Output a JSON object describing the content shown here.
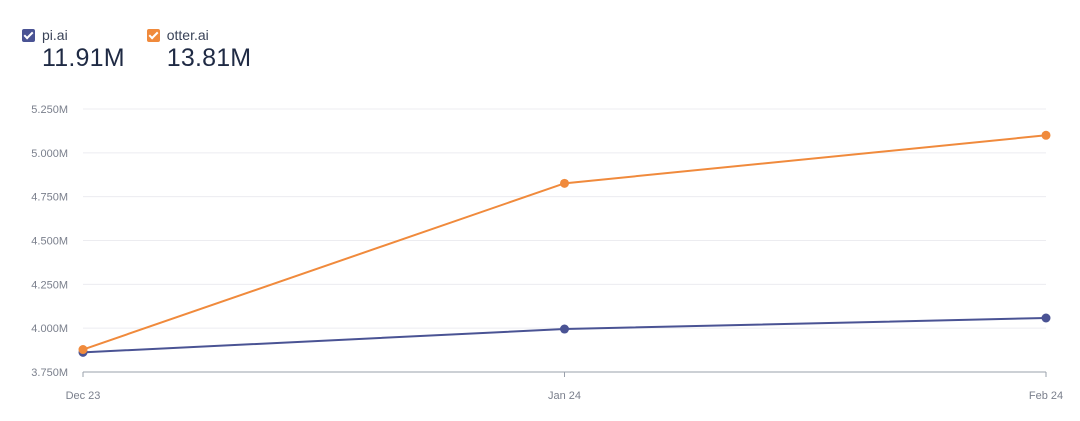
{
  "legend": [
    {
      "name": "pi.ai",
      "total": "11.91M",
      "color": "#4a5394"
    },
    {
      "name": "otter.ai",
      "total": "13.81M",
      "color": "#f08a3c"
    }
  ],
  "chart_data": {
    "type": "line",
    "categories": [
      "Dec 23",
      "Jan 24",
      "Feb 24"
    ],
    "series": [
      {
        "name": "pi.ai",
        "color": "#4a5394",
        "values": [
          3.862,
          3.995,
          4.058
        ]
      },
      {
        "name": "otter.ai",
        "color": "#f08a3c",
        "values": [
          3.878,
          4.826,
          5.1
        ]
      }
    ],
    "ylim": [
      3.75,
      5.25
    ],
    "yticks": [
      3.75,
      4.0,
      4.25,
      4.5,
      4.75,
      5.0,
      5.25
    ],
    "ytick_labels": [
      "3.750M",
      "4.000M",
      "4.250M",
      "4.500M",
      "4.750M",
      "5.000M",
      "5.250M"
    ],
    "grid": true,
    "legend_position": "top-left"
  }
}
